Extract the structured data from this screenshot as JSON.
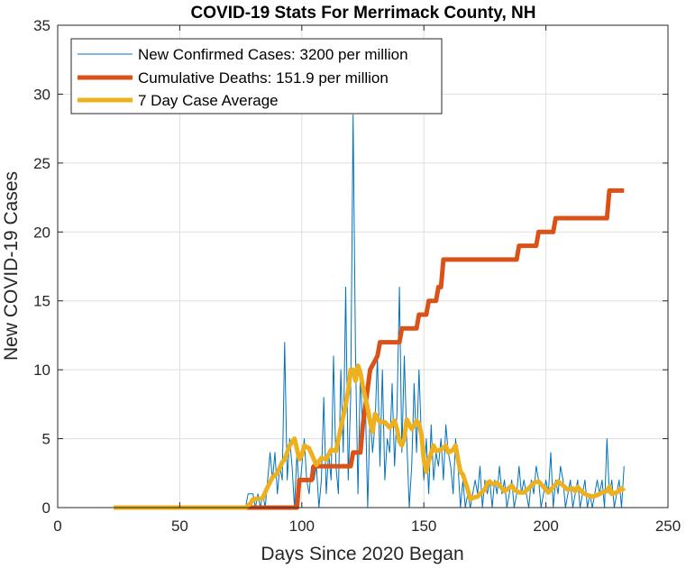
{
  "chart_data": {
    "type": "line",
    "title": "COVID-19 Stats For Merrimack County, NH",
    "xlabel": "Days Since 2020 Began",
    "ylabel": "New COVID-19 Cases",
    "xlim": [
      0,
      250
    ],
    "ylim": [
      0,
      35
    ],
    "xticks": [
      0,
      50,
      100,
      150,
      200,
      250
    ],
    "yticks": [
      0,
      5,
      10,
      15,
      20,
      25,
      30,
      35
    ],
    "grid": true,
    "legend_position": "top-left",
    "series": [
      {
        "name": "New Confirmed Cases: 3200 per million",
        "color": "#0072BD",
        "line_width": "thin",
        "points": [
          [
            23,
            0
          ],
          [
            30,
            0
          ],
          [
            40,
            0
          ],
          [
            50,
            0
          ],
          [
            60,
            0
          ],
          [
            70,
            0
          ],
          [
            77,
            0
          ],
          [
            78,
            1
          ],
          [
            79,
            1
          ],
          [
            80,
            1
          ],
          [
            81,
            0
          ],
          [
            82,
            1
          ],
          [
            83,
            0
          ],
          [
            84,
            1
          ],
          [
            85,
            0
          ],
          [
            86,
            2
          ],
          [
            87,
            4
          ],
          [
            88,
            2
          ],
          [
            89,
            4
          ],
          [
            90,
            1
          ],
          [
            91,
            3
          ],
          [
            92,
            2
          ],
          [
            93,
            12
          ],
          [
            94,
            2
          ],
          [
            95,
            5
          ],
          [
            96,
            3
          ],
          [
            97,
            0
          ],
          [
            98,
            4
          ],
          [
            99,
            1
          ],
          [
            100,
            3
          ],
          [
            101,
            5
          ],
          [
            102,
            2
          ],
          [
            103,
            1
          ],
          [
            104,
            3
          ],
          [
            105,
            2
          ],
          [
            106,
            3
          ],
          [
            107,
            0
          ],
          [
            108,
            2
          ],
          [
            109,
            8
          ],
          [
            110,
            1
          ],
          [
            111,
            4
          ],
          [
            112,
            2
          ],
          [
            113,
            11
          ],
          [
            114,
            3
          ],
          [
            115,
            1
          ],
          [
            116,
            10
          ],
          [
            117,
            4
          ],
          [
            118,
            16
          ],
          [
            119,
            2
          ],
          [
            120,
            8
          ],
          [
            121,
            28.5
          ],
          [
            122,
            11
          ],
          [
            123,
            1
          ],
          [
            124,
            10
          ],
          [
            125,
            5
          ],
          [
            126,
            8
          ],
          [
            127,
            0
          ],
          [
            128,
            7
          ],
          [
            129,
            4
          ],
          [
            130,
            6
          ],
          [
            131,
            11
          ],
          [
            132,
            3
          ],
          [
            133,
            10
          ],
          [
            134,
            2
          ],
          [
            135,
            5
          ],
          [
            136,
            4
          ],
          [
            137,
            9
          ],
          [
            138,
            3
          ],
          [
            139,
            7
          ],
          [
            140,
            16
          ],
          [
            141,
            4
          ],
          [
            142,
            11
          ],
          [
            143,
            5
          ],
          [
            144,
            0
          ],
          [
            145,
            3
          ],
          [
            146,
            9
          ],
          [
            147,
            4
          ],
          [
            148,
            10
          ],
          [
            149,
            5
          ],
          [
            150,
            2
          ],
          [
            151,
            5
          ],
          [
            152,
            1
          ],
          [
            153,
            6
          ],
          [
            154,
            2
          ],
          [
            155,
            4
          ],
          [
            156,
            3
          ],
          [
            157,
            5
          ],
          [
            158,
            2
          ],
          [
            159,
            6
          ],
          [
            160,
            4
          ],
          [
            161,
            3
          ],
          [
            162,
            1
          ],
          [
            163,
            5
          ],
          [
            164,
            3
          ],
          [
            165,
            0
          ],
          [
            166,
            2
          ],
          [
            167,
            0
          ],
          [
            168,
            1
          ],
          [
            169,
            0
          ],
          [
            170,
            1
          ],
          [
            171,
            2
          ],
          [
            172,
            1
          ],
          [
            173,
            3
          ],
          [
            174,
            0
          ],
          [
            175,
            2
          ],
          [
            176,
            1
          ],
          [
            177,
            2
          ],
          [
            178,
            0
          ],
          [
            179,
            2
          ],
          [
            180,
            1
          ],
          [
            181,
            3
          ],
          [
            182,
            1
          ],
          [
            183,
            2
          ],
          [
            184,
            0
          ],
          [
            185,
            1
          ],
          [
            186,
            2
          ],
          [
            187,
            0
          ],
          [
            188,
            1
          ],
          [
            189,
            3
          ],
          [
            190,
            1
          ],
          [
            191,
            2
          ],
          [
            192,
            1
          ],
          [
            193,
            0
          ],
          [
            194,
            2
          ],
          [
            195,
            1
          ],
          [
            196,
            3
          ],
          [
            197,
            2
          ],
          [
            198,
            0
          ],
          [
            199,
            1
          ],
          [
            200,
            2
          ],
          [
            201,
            1
          ],
          [
            202,
            4
          ],
          [
            203,
            0
          ],
          [
            204,
            2
          ],
          [
            205,
            1
          ],
          [
            206,
            3
          ],
          [
            207,
            2
          ],
          [
            208,
            0
          ],
          [
            209,
            1
          ],
          [
            210,
            2
          ],
          [
            211,
            0
          ],
          [
            212,
            1
          ],
          [
            213,
            2
          ],
          [
            214,
            0
          ],
          [
            215,
            1
          ],
          [
            216,
            2
          ],
          [
            217,
            0
          ],
          [
            218,
            1
          ],
          [
            219,
            0
          ],
          [
            220,
            1
          ],
          [
            221,
            2
          ],
          [
            222,
            1
          ],
          [
            223,
            2
          ],
          [
            224,
            0
          ],
          [
            225,
            5
          ],
          [
            226,
            1
          ],
          [
            227,
            2
          ],
          [
            228,
            0
          ],
          [
            229,
            1
          ],
          [
            230,
            2
          ],
          [
            231,
            0
          ],
          [
            232,
            3
          ]
        ]
      },
      {
        "name": "Cumulative Deaths: 151.9 per million",
        "color": "#D95319",
        "line_width": "thick",
        "points": [
          [
            23,
            0
          ],
          [
            98,
            0
          ],
          [
            99,
            2
          ],
          [
            104,
            2
          ],
          [
            105,
            3
          ],
          [
            117,
            3
          ],
          [
            118,
            3
          ],
          [
            120,
            3
          ],
          [
            121,
            4
          ],
          [
            124,
            4
          ],
          [
            125,
            6
          ],
          [
            128,
            10
          ],
          [
            131,
            11
          ],
          [
            132,
            12
          ],
          [
            140,
            12
          ],
          [
            141,
            13
          ],
          [
            147,
            13
          ],
          [
            148,
            14
          ],
          [
            151,
            14
          ],
          [
            152,
            15
          ],
          [
            155,
            15
          ],
          [
            156,
            16
          ],
          [
            157,
            16
          ],
          [
            158,
            18
          ],
          [
            188,
            18
          ],
          [
            189,
            19
          ],
          [
            196,
            19
          ],
          [
            197,
            20
          ],
          [
            203,
            20
          ],
          [
            204,
            21
          ],
          [
            225,
            21
          ],
          [
            226,
            23
          ],
          [
            232,
            23
          ]
        ]
      },
      {
        "name": "7 Day Case Average",
        "color": "#EDB120",
        "line_width": "thick",
        "points": [
          [
            23,
            0
          ],
          [
            60,
            0
          ],
          [
            77,
            0
          ],
          [
            79,
            0.3
          ],
          [
            80,
            0.6
          ],
          [
            84,
            0.7
          ],
          [
            86,
            1.5
          ],
          [
            88,
            2.2
          ],
          [
            90,
            2.5
          ],
          [
            92,
            3.3
          ],
          [
            93,
            3.5
          ],
          [
            95,
            4.5
          ],
          [
            97,
            5
          ],
          [
            99,
            3.5
          ],
          [
            100,
            3.8
          ],
          [
            101,
            4.5
          ],
          [
            103,
            4.3
          ],
          [
            105,
            3.5
          ],
          [
            106,
            3.1
          ],
          [
            108,
            3.6
          ],
          [
            110,
            3.5
          ],
          [
            112,
            4.2
          ],
          [
            114,
            4.1
          ],
          [
            116,
            5.8
          ],
          [
            118,
            7.5
          ],
          [
            119,
            8.5
          ],
          [
            120,
            10
          ],
          [
            121,
            10
          ],
          [
            122,
            9.2
          ],
          [
            123,
            10.3
          ],
          [
            124,
            9.8
          ],
          [
            125,
            8.8
          ],
          [
            126,
            8
          ],
          [
            127,
            7.2
          ],
          [
            128,
            6.2
          ],
          [
            129,
            5.5
          ],
          [
            130,
            6.8
          ],
          [
            131,
            6.5
          ],
          [
            132,
            6.2
          ],
          [
            134,
            6.2
          ],
          [
            136,
            5.8
          ],
          [
            138,
            6.3
          ],
          [
            139,
            5.7
          ],
          [
            140,
            4.8
          ],
          [
            141,
            4.5
          ],
          [
            142,
            5
          ],
          [
            143,
            6.4
          ],
          [
            145,
            5.7
          ],
          [
            147,
            6.3
          ],
          [
            148,
            6.1
          ],
          [
            149,
            5.3
          ],
          [
            150,
            3.5
          ],
          [
            151,
            2.6
          ],
          [
            152,
            3.4
          ],
          [
            154,
            4.5
          ],
          [
            155,
            4.1
          ],
          [
            157,
            4.2
          ],
          [
            159,
            4.5
          ],
          [
            160,
            4
          ],
          [
            162,
            4.2
          ],
          [
            163,
            4.5
          ],
          [
            164,
            3.5
          ],
          [
            165,
            2.6
          ],
          [
            166,
            2.4
          ],
          [
            168,
            1.3
          ],
          [
            169,
            0.6
          ],
          [
            170,
            0.7
          ],
          [
            172,
            0.8
          ],
          [
            173,
            1
          ],
          [
            175,
            1.3
          ],
          [
            176,
            1.8
          ],
          [
            177,
            1.9
          ],
          [
            178,
            1.7
          ],
          [
            180,
            1.8
          ],
          [
            182,
            1.4
          ],
          [
            183,
            1.2
          ],
          [
            184,
            1.3
          ],
          [
            186,
            1.6
          ],
          [
            187,
            1.3
          ],
          [
            189,
            1.1
          ],
          [
            191,
            1.1
          ],
          [
            193,
            1.4
          ],
          [
            195,
            1.8
          ],
          [
            197,
            1.9
          ],
          [
            199,
            1.5
          ],
          [
            201,
            1.1
          ],
          [
            203,
            1.5
          ],
          [
            205,
            1.9
          ],
          [
            207,
            1.6
          ],
          [
            209,
            1.3
          ],
          [
            211,
            1.4
          ],
          [
            212,
            1.2
          ],
          [
            213,
            1.5
          ],
          [
            215,
            1.1
          ],
          [
            217,
            0.9
          ],
          [
            219,
            0.8
          ],
          [
            221,
            0.9
          ],
          [
            223,
            1.1
          ],
          [
            225,
            1.2
          ],
          [
            226,
            1.5
          ],
          [
            227,
            1
          ],
          [
            229,
            1.1
          ],
          [
            231,
            1.4
          ],
          [
            232,
            1.2
          ]
        ]
      }
    ]
  }
}
